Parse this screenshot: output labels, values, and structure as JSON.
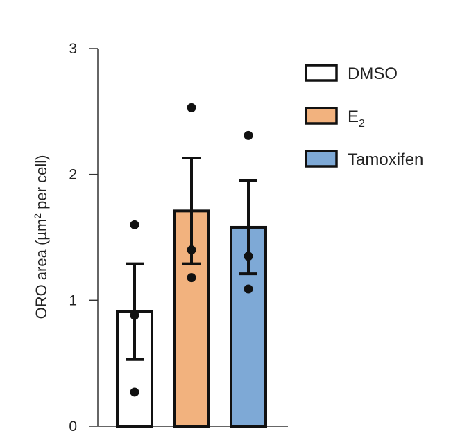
{
  "chart_data": {
    "type": "bar",
    "categories": [
      "DMSO",
      "E2",
      "Tamoxifen"
    ],
    "values": [
      0.91,
      1.71,
      1.58
    ],
    "error": [
      0.38,
      0.42,
      0.37
    ],
    "points": [
      [
        0.27,
        0.88,
        1.6
      ],
      [
        1.18,
        1.4,
        2.53
      ],
      [
        1.09,
        1.35,
        2.31
      ]
    ],
    "colors": [
      "#ffffff",
      "#f2b27e",
      "#7ea9d6"
    ],
    "ylabel": {
      "main": "ORO area (µm",
      "sup": "2",
      "tail": " per cell)"
    },
    "ylim": [
      0,
      3
    ],
    "yticks": [
      "0",
      "1",
      "2",
      "3"
    ],
    "legend": {
      "position": "top-right",
      "items": [
        {
          "label": "DMSO",
          "sub": ""
        },
        {
          "label": "E",
          "sub": "2"
        },
        {
          "label": "Tamoxifen",
          "sub": ""
        }
      ]
    },
    "grid": false
  }
}
